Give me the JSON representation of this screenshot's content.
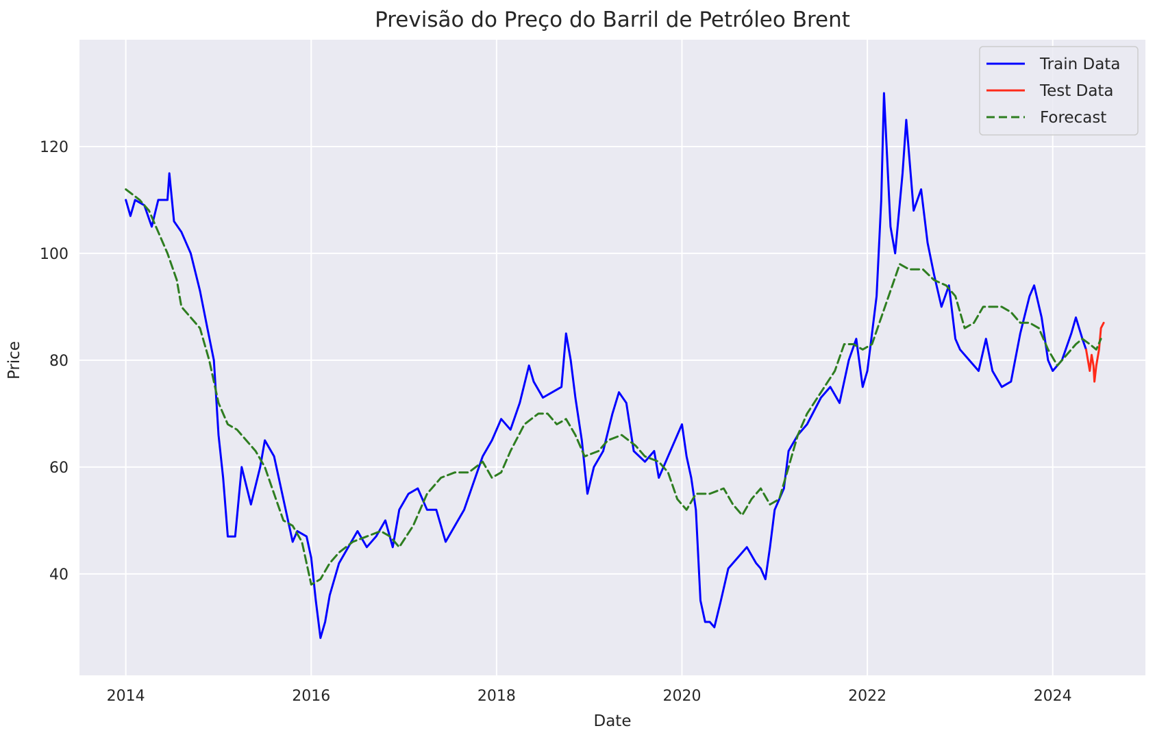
{
  "chart_data": {
    "type": "line",
    "title": "Previsão do Preço do Barril de Petróleo Brent",
    "xlabel": "Date",
    "ylabel": "Price",
    "xlim": [
      2013.5,
      2025.0
    ],
    "ylim": [
      21,
      140
    ],
    "x_ticks": [
      2014,
      2016,
      2018,
      2020,
      2022,
      2024
    ],
    "x_tick_labels": [
      "2014",
      "2016",
      "2018",
      "2020",
      "2022",
      "2024"
    ],
    "y_ticks": [
      40,
      60,
      80,
      100,
      120
    ],
    "y_tick_labels": [
      "40",
      "60",
      "80",
      "100",
      "120"
    ],
    "grid": true,
    "legend_position": "top-right",
    "series": [
      {
        "name": "Train Data",
        "color": "#0000ff",
        "style": "solid",
        "points": [
          [
            2014.0,
            110
          ],
          [
            2014.05,
            107
          ],
          [
            2014.1,
            110
          ],
          [
            2014.2,
            109
          ],
          [
            2014.28,
            105
          ],
          [
            2014.35,
            110
          ],
          [
            2014.45,
            110
          ],
          [
            2014.47,
            115
          ],
          [
            2014.52,
            106
          ],
          [
            2014.6,
            104
          ],
          [
            2014.7,
            100
          ],
          [
            2014.8,
            93
          ],
          [
            2014.88,
            86
          ],
          [
            2014.95,
            80
          ],
          [
            2015.0,
            66
          ],
          [
            2015.05,
            58
          ],
          [
            2015.1,
            47
          ],
          [
            2015.18,
            47
          ],
          [
            2015.25,
            60
          ],
          [
            2015.35,
            53
          ],
          [
            2015.45,
            60
          ],
          [
            2015.5,
            65
          ],
          [
            2015.6,
            62
          ],
          [
            2015.65,
            58
          ],
          [
            2015.75,
            50
          ],
          [
            2015.8,
            46
          ],
          [
            2015.85,
            48
          ],
          [
            2015.95,
            47
          ],
          [
            2016.0,
            43
          ],
          [
            2016.05,
            35
          ],
          [
            2016.1,
            28
          ],
          [
            2016.15,
            31
          ],
          [
            2016.2,
            36
          ],
          [
            2016.3,
            42
          ],
          [
            2016.4,
            45
          ],
          [
            2016.5,
            48
          ],
          [
            2016.6,
            45
          ],
          [
            2016.7,
            47
          ],
          [
            2016.8,
            50
          ],
          [
            2016.88,
            45
          ],
          [
            2016.95,
            52
          ],
          [
            2017.05,
            55
          ],
          [
            2017.15,
            56
          ],
          [
            2017.25,
            52
          ],
          [
            2017.35,
            52
          ],
          [
            2017.45,
            46
          ],
          [
            2017.55,
            49
          ],
          [
            2017.65,
            52
          ],
          [
            2017.75,
            57
          ],
          [
            2017.85,
            62
          ],
          [
            2017.95,
            65
          ],
          [
            2018.05,
            69
          ],
          [
            2018.15,
            67
          ],
          [
            2018.25,
            72
          ],
          [
            2018.35,
            79
          ],
          [
            2018.4,
            76
          ],
          [
            2018.5,
            73
          ],
          [
            2018.6,
            74
          ],
          [
            2018.7,
            75
          ],
          [
            2018.75,
            85
          ],
          [
            2018.8,
            80
          ],
          [
            2018.85,
            73
          ],
          [
            2018.92,
            65
          ],
          [
            2018.98,
            55
          ],
          [
            2019.05,
            60
          ],
          [
            2019.15,
            63
          ],
          [
            2019.25,
            70
          ],
          [
            2019.32,
            74
          ],
          [
            2019.4,
            72
          ],
          [
            2019.48,
            63
          ],
          [
            2019.6,
            61
          ],
          [
            2019.7,
            63
          ],
          [
            2019.75,
            58
          ],
          [
            2019.85,
            62
          ],
          [
            2019.95,
            66
          ],
          [
            2020.0,
            68
          ],
          [
            2020.05,
            62
          ],
          [
            2020.1,
            58
          ],
          [
            2020.15,
            52
          ],
          [
            2020.2,
            35
          ],
          [
            2020.25,
            31
          ],
          [
            2020.3,
            31
          ],
          [
            2020.35,
            30
          ],
          [
            2020.42,
            35
          ],
          [
            2020.5,
            41
          ],
          [
            2020.6,
            43
          ],
          [
            2020.7,
            45
          ],
          [
            2020.8,
            42
          ],
          [
            2020.85,
            41
          ],
          [
            2020.9,
            39
          ],
          [
            2020.95,
            45
          ],
          [
            2021.0,
            52
          ],
          [
            2021.1,
            56
          ],
          [
            2021.15,
            63
          ],
          [
            2021.25,
            66
          ],
          [
            2021.35,
            68
          ],
          [
            2021.5,
            73
          ],
          [
            2021.6,
            75
          ],
          [
            2021.7,
            72
          ],
          [
            2021.8,
            80
          ],
          [
            2021.88,
            84
          ],
          [
            2021.95,
            75
          ],
          [
            2022.0,
            78
          ],
          [
            2022.05,
            85
          ],
          [
            2022.1,
            92
          ],
          [
            2022.15,
            110
          ],
          [
            2022.18,
            130
          ],
          [
            2022.25,
            105
          ],
          [
            2022.3,
            100
          ],
          [
            2022.38,
            115
          ],
          [
            2022.42,
            125
          ],
          [
            2022.5,
            108
          ],
          [
            2022.58,
            112
          ],
          [
            2022.65,
            102
          ],
          [
            2022.72,
            96
          ],
          [
            2022.8,
            90
          ],
          [
            2022.88,
            94
          ],
          [
            2022.95,
            84
          ],
          [
            2023.0,
            82
          ],
          [
            2023.1,
            80
          ],
          [
            2023.2,
            78
          ],
          [
            2023.28,
            84
          ],
          [
            2023.35,
            78
          ],
          [
            2023.45,
            75
          ],
          [
            2023.55,
            76
          ],
          [
            2023.65,
            85
          ],
          [
            2023.75,
            92
          ],
          [
            2023.8,
            94
          ],
          [
            2023.88,
            88
          ],
          [
            2023.95,
            80
          ],
          [
            2024.0,
            78
          ],
          [
            2024.1,
            80
          ],
          [
            2024.2,
            85
          ],
          [
            2024.25,
            88
          ],
          [
            2024.32,
            84
          ],
          [
            2024.36,
            82
          ]
        ]
      },
      {
        "name": "Test Data",
        "color": "#ff2a1a",
        "style": "solid",
        "points": [
          [
            2024.36,
            82
          ],
          [
            2024.38,
            80
          ],
          [
            2024.4,
            78
          ],
          [
            2024.42,
            81
          ],
          [
            2024.44,
            79
          ],
          [
            2024.45,
            76
          ],
          [
            2024.47,
            79
          ],
          [
            2024.5,
            82
          ],
          [
            2024.52,
            86
          ],
          [
            2024.55,
            87
          ]
        ]
      },
      {
        "name": "Forecast",
        "color": "#2e7d20",
        "style": "dashed",
        "points": [
          [
            2014.0,
            112
          ],
          [
            2014.15,
            110
          ],
          [
            2014.25,
            108
          ],
          [
            2014.35,
            104
          ],
          [
            2014.45,
            100
          ],
          [
            2014.55,
            95
          ],
          [
            2014.6,
            90
          ],
          [
            2014.7,
            88
          ],
          [
            2014.8,
            86
          ],
          [
            2014.9,
            80
          ],
          [
            2015.0,
            72
          ],
          [
            2015.1,
            68
          ],
          [
            2015.2,
            67
          ],
          [
            2015.3,
            65
          ],
          [
            2015.4,
            63
          ],
          [
            2015.5,
            60
          ],
          [
            2015.6,
            55
          ],
          [
            2015.7,
            50
          ],
          [
            2015.8,
            49
          ],
          [
            2015.9,
            46
          ],
          [
            2016.0,
            38
          ],
          [
            2016.1,
            39
          ],
          [
            2016.2,
            42
          ],
          [
            2016.3,
            44
          ],
          [
            2016.45,
            46
          ],
          [
            2016.6,
            47
          ],
          [
            2016.75,
            48
          ],
          [
            2016.85,
            47
          ],
          [
            2016.95,
            45
          ],
          [
            2017.1,
            49
          ],
          [
            2017.25,
            55
          ],
          [
            2017.4,
            58
          ],
          [
            2017.55,
            59
          ],
          [
            2017.7,
            59
          ],
          [
            2017.85,
            61
          ],
          [
            2017.95,
            58
          ],
          [
            2018.05,
            59
          ],
          [
            2018.15,
            63
          ],
          [
            2018.3,
            68
          ],
          [
            2018.45,
            70
          ],
          [
            2018.55,
            70
          ],
          [
            2018.65,
            68
          ],
          [
            2018.75,
            69
          ],
          [
            2018.85,
            66
          ],
          [
            2018.95,
            62
          ],
          [
            2019.1,
            63
          ],
          [
            2019.2,
            65
          ],
          [
            2019.35,
            66
          ],
          [
            2019.5,
            64
          ],
          [
            2019.6,
            62
          ],
          [
            2019.75,
            61
          ],
          [
            2019.85,
            59
          ],
          [
            2019.95,
            54
          ],
          [
            2020.05,
            52
          ],
          [
            2020.15,
            55
          ],
          [
            2020.3,
            55
          ],
          [
            2020.45,
            56
          ],
          [
            2020.55,
            53
          ],
          [
            2020.65,
            51
          ],
          [
            2020.75,
            54
          ],
          [
            2020.85,
            56
          ],
          [
            2020.95,
            53
          ],
          [
            2021.05,
            54
          ],
          [
            2021.15,
            60
          ],
          [
            2021.25,
            66
          ],
          [
            2021.35,
            70
          ],
          [
            2021.5,
            74
          ],
          [
            2021.65,
            78
          ],
          [
            2021.75,
            83
          ],
          [
            2021.85,
            83
          ],
          [
            2021.95,
            82
          ],
          [
            2022.05,
            83
          ],
          [
            2022.15,
            88
          ],
          [
            2022.25,
            93
          ],
          [
            2022.35,
            98
          ],
          [
            2022.45,
            97
          ],
          [
            2022.6,
            97
          ],
          [
            2022.72,
            95
          ],
          [
            2022.85,
            94
          ],
          [
            2022.95,
            92
          ],
          [
            2023.05,
            86
          ],
          [
            2023.15,
            87
          ],
          [
            2023.25,
            90
          ],
          [
            2023.35,
            90
          ],
          [
            2023.45,
            90
          ],
          [
            2023.55,
            89
          ],
          [
            2023.65,
            87
          ],
          [
            2023.75,
            87
          ],
          [
            2023.85,
            86
          ],
          [
            2023.95,
            82
          ],
          [
            2024.05,
            79
          ],
          [
            2024.15,
            81
          ],
          [
            2024.25,
            83
          ],
          [
            2024.32,
            84
          ],
          [
            2024.4,
            83
          ],
          [
            2024.47,
            82
          ],
          [
            2024.52,
            84
          ]
        ]
      }
    ]
  }
}
